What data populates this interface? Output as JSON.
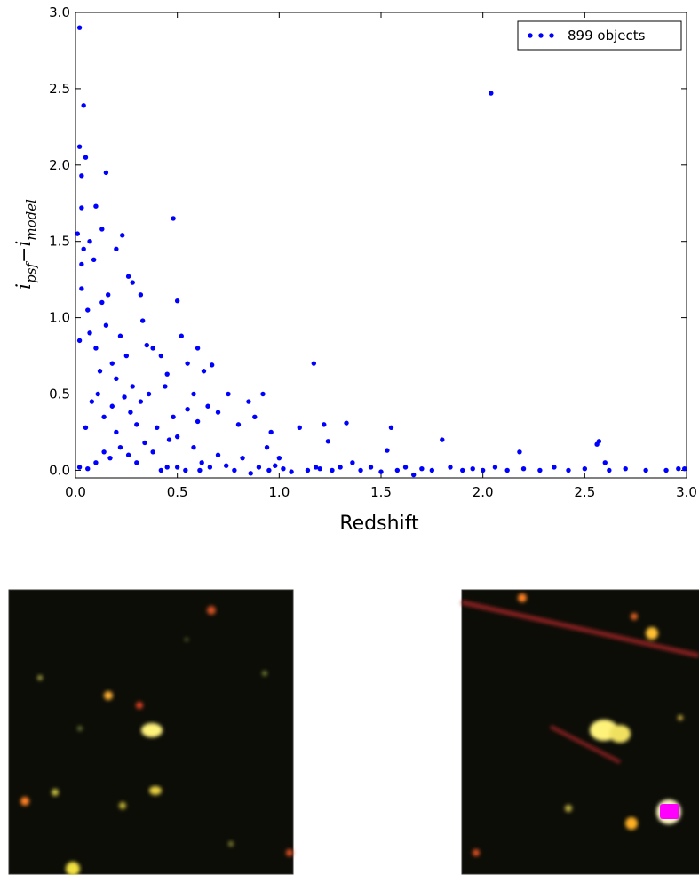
{
  "chart_data": {
    "type": "scatter",
    "x_label": "Redshift",
    "y_label": {
      "main1": "i",
      "sub1": "psf",
      "sep": "−",
      "main2": "i",
      "sub2": "model"
    },
    "xlim": [
      0,
      3
    ],
    "ylim": [
      -0.05,
      3
    ],
    "xticks": [
      {
        "value": 0,
        "label": "0.0"
      },
      0.5,
      {
        "value": 1,
        "label": "1.0"
      },
      1.5,
      {
        "value": 2,
        "label": "2.0"
      },
      2.5,
      {
        "value": 3,
        "label": "3.0"
      }
    ],
    "yticks": [
      {
        "value": 0,
        "label": "0.0"
      },
      0.5,
      {
        "value": 1,
        "label": "1.0"
      },
      1.5,
      {
        "value": 2,
        "label": "2.0"
      },
      2.5,
      {
        "value": 3,
        "label": "3.0"
      }
    ],
    "legend": "upper right",
    "series": [
      {
        "name": "899 objects",
        "color": "#0000ff",
        "x": [
          0.02,
          0.02,
          0.05,
          0.04,
          0.03,
          0.03,
          0.01,
          0.04,
          0.03,
          0.07,
          0.1,
          0.13,
          0.15,
          0.09,
          0.2,
          0.23,
          0.26,
          0.28,
          0.03,
          0.06,
          0.13,
          0.16,
          0.32,
          0.48,
          0.5,
          0.02,
          0.07,
          0.1,
          0.12,
          0.15,
          0.18,
          0.2,
          0.22,
          0.25,
          0.28,
          0.33,
          0.35,
          0.38,
          0.42,
          0.45,
          0.52,
          0.55,
          0.6,
          0.63,
          0.67,
          0.08,
          0.11,
          0.14,
          0.18,
          0.2,
          0.24,
          0.27,
          0.3,
          0.32,
          0.36,
          0.4,
          0.44,
          0.48,
          0.5,
          0.55,
          0.58,
          0.6,
          0.65,
          0.7,
          0.75,
          0.8,
          0.85,
          0.88,
          0.92,
          0.96,
          1.17,
          0.05,
          0.02,
          0.06,
          0.1,
          0.14,
          0.17,
          0.22,
          0.26,
          0.3,
          0.34,
          0.38,
          0.42,
          0.46,
          0.5,
          0.54,
          0.58,
          0.62,
          0.66,
          0.7,
          0.74,
          0.78,
          0.82,
          0.86,
          0.9,
          0.94,
          0.98,
          1.02,
          1.06,
          1.1,
          1.14,
          1.18,
          1.22,
          1.24,
          1.26,
          1.3,
          1.33,
          1.36,
          1.4,
          1.45,
          1.5,
          1.53,
          1.55,
          1.58,
          1.62,
          1.66,
          1.7,
          1.75,
          1.8,
          1.84,
          1.9,
          1.95,
          2.0,
          2.04,
          2.06,
          2.12,
          2.18,
          2.2,
          2.28,
          2.35,
          2.42,
          2.5,
          2.56,
          2.57,
          2.6,
          2.62,
          2.7,
          2.8,
          2.9,
          2.96,
          2.99,
          1.0,
          0.95,
          1.2,
          0.45,
          0.61
        ],
        "values": [
          2.9,
          2.12,
          2.05,
          2.39,
          1.93,
          1.72,
          1.55,
          1.45,
          1.35,
          1.5,
          1.73,
          1.58,
          1.95,
          1.38,
          1.45,
          1.54,
          1.27,
          1.23,
          1.19,
          1.05,
          1.1,
          1.15,
          1.15,
          1.65,
          1.11,
          0.85,
          0.9,
          0.8,
          0.65,
          0.95,
          0.7,
          0.6,
          0.88,
          0.75,
          0.55,
          0.98,
          0.82,
          0.8,
          0.75,
          0.63,
          0.88,
          0.7,
          0.8,
          0.65,
          0.69,
          0.45,
          0.5,
          0.35,
          0.42,
          0.25,
          0.48,
          0.38,
          0.3,
          0.45,
          0.5,
          0.28,
          0.55,
          0.35,
          0.22,
          0.4,
          0.5,
          0.32,
          0.42,
          0.38,
          0.5,
          0.3,
          0.45,
          0.35,
          0.5,
          0.25,
          0.7,
          0.28,
          0.02,
          0.01,
          0.05,
          0.12,
          0.08,
          0.15,
          0.1,
          0.05,
          0.18,
          0.12,
          0.0,
          0.2,
          0.02,
          0.0,
          0.15,
          0.05,
          0.02,
          0.1,
          0.03,
          0.0,
          0.08,
          -0.02,
          0.02,
          0.15,
          0.03,
          0.01,
          -0.01,
          0.28,
          0.0,
          0.02,
          0.3,
          0.19,
          0.0,
          0.02,
          0.31,
          0.05,
          0.0,
          0.02,
          -0.01,
          0.13,
          0.28,
          0.0,
          0.02,
          -0.03,
          0.01,
          0.0,
          0.2,
          0.02,
          0.0,
          0.01,
          0.0,
          2.47,
          0.02,
          0.0,
          0.12,
          0.01,
          0.0,
          0.02,
          0.0,
          0.01,
          0.17,
          0.19,
          0.05,
          0.0,
          0.01,
          0.0,
          0.0,
          0.01,
          0.01,
          0.08,
          0.0,
          0.01,
          0.02,
          0.0
        ]
      }
    ]
  }
}
